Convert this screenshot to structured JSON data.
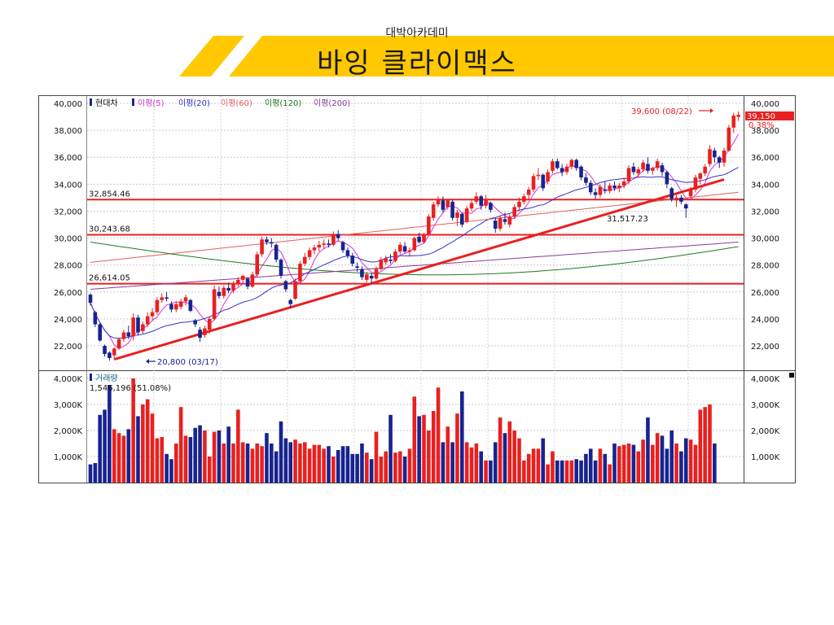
{
  "slide": {
    "subtitle": "대박아카데미",
    "title": "바잉 클라이맥스"
  },
  "colors": {
    "banner": "#ffc800",
    "up": "#e8201f",
    "down": "#17238f",
    "trendline": "#e8201f",
    "ma5": "#d633d6",
    "ma20": "#3333cc",
    "ma60": "#e26060",
    "ma120": "#1f7a1f",
    "ma200": "#8a3a9a"
  },
  "legend": {
    "stock": "현대차",
    "ma5": "이평(5)",
    "ma20": "이평(20)",
    "ma60": "이평(60)",
    "ma120": "이평(120)",
    "ma200": "이평(200)"
  },
  "volume_panel": {
    "label": "거래량",
    "current": "1,546,196 (51.08%)"
  },
  "price_tag": {
    "value": "39,150",
    "change": "0.38%"
  },
  "chart_data": {
    "type": "candlestick",
    "stock": "현대차",
    "price_ylim": [
      21000,
      40300
    ],
    "price_ticks": [
      "40,000",
      "38,000",
      "36,000",
      "34,000",
      "32,000",
      "30,000",
      "28,000",
      "26,000",
      "24,000",
      "22,000"
    ],
    "volume_ylim": [
      0,
      4100000
    ],
    "volume_ticks": [
      "4,000K",
      "3,000K",
      "2,000K",
      "1,000K"
    ],
    "horizontal_levels": [
      {
        "label": "32,854.46",
        "value": 32854.46
      },
      {
        "label": "30,243.68",
        "value": 30243.68
      },
      {
        "label": "26,614.05",
        "value": 26614.05
      }
    ],
    "annotations": {
      "high": {
        "text": "39,600 (08/22)",
        "value": 39600
      },
      "low": {
        "text": "20,800 (03/17)",
        "value": 20800
      },
      "support": {
        "text": "31,517.23",
        "value": 31517.23
      }
    },
    "trendline": {
      "from_bar": 5,
      "from_value": 21000,
      "to_bar": 133,
      "to_value": 34350
    },
    "ohlc": [
      [
        25800,
        25900,
        25000,
        25200
      ],
      [
        24500,
        24600,
        23400,
        23600
      ],
      [
        23600,
        23700,
        22300,
        22400
      ],
      [
        22000,
        22100,
        21200,
        21400
      ],
      [
        21500,
        21600,
        20900,
        21100
      ],
      [
        21300,
        21900,
        21000,
        21800
      ],
      [
        21800,
        22600,
        21700,
        22500
      ],
      [
        22500,
        23200,
        22300,
        23000
      ],
      [
        23000,
        23500,
        22500,
        22700
      ],
      [
        22700,
        24400,
        22400,
        24100
      ],
      [
        24100,
        24300,
        22800,
        23000
      ],
      [
        23100,
        23800,
        22900,
        23600
      ],
      [
        23600,
        24500,
        23400,
        24200
      ],
      [
        24200,
        24800,
        23900,
        24500
      ],
      [
        24500,
        25600,
        24300,
        25400
      ],
      [
        25400,
        25900,
        25200,
        25600
      ],
      [
        25600,
        26000,
        25300,
        25500
      ],
      [
        25100,
        25300,
        24500,
        24700
      ],
      [
        24700,
        25300,
        24500,
        25100
      ],
      [
        24900,
        25500,
        24700,
        25300
      ],
      [
        25300,
        25800,
        25000,
        25600
      ],
      [
        25400,
        25500,
        24500,
        24600
      ],
      [
        23900,
        24000,
        23400,
        23600
      ],
      [
        23200,
        23400,
        22300,
        22600
      ],
      [
        22800,
        23500,
        22600,
        23300
      ],
      [
        23200,
        24200,
        22900,
        24000
      ],
      [
        24000,
        26500,
        23900,
        26200
      ],
      [
        26000,
        26400,
        25500,
        25700
      ],
      [
        25700,
        26500,
        25500,
        26300
      ],
      [
        26300,
        26700,
        25900,
        26100
      ],
      [
        26100,
        26800,
        25900,
        26600
      ],
      [
        26600,
        27100,
        26400,
        26900
      ],
      [
        26900,
        27300,
        26600,
        27200
      ],
      [
        27000,
        27100,
        26200,
        26400
      ],
      [
        26400,
        27500,
        26300,
        27300
      ],
      [
        27300,
        29000,
        27100,
        28800
      ],
      [
        28800,
        30100,
        28600,
        29900
      ],
      [
        29900,
        30100,
        29500,
        29700
      ],
      [
        29700,
        30000,
        29300,
        29600
      ],
      [
        29500,
        29600,
        28200,
        28400
      ],
      [
        28400,
        28500,
        27000,
        27200
      ],
      [
        26800,
        26900,
        26000,
        26200
      ],
      [
        25400,
        25500,
        24800,
        25100
      ],
      [
        25500,
        27000,
        25400,
        26800
      ],
      [
        26800,
        28300,
        26600,
        28100
      ],
      [
        28100,
        28900,
        27900,
        28600
      ],
      [
        28600,
        29300,
        28400,
        29100
      ],
      [
        29100,
        29500,
        28800,
        29300
      ],
      [
        29300,
        29800,
        29000,
        29500
      ],
      [
        29500,
        29900,
        29200,
        29600
      ],
      [
        29600,
        29900,
        29300,
        29500
      ],
      [
        29500,
        30500,
        29400,
        30300
      ],
      [
        30300,
        30600,
        29800,
        30000
      ],
      [
        29700,
        29800,
        28900,
        29100
      ],
      [
        29100,
        29300,
        28500,
        28700
      ],
      [
        28700,
        28900,
        27900,
        28100
      ],
      [
        27900,
        28200,
        27500,
        27800
      ],
      [
        27700,
        27900,
        26900,
        27100
      ],
      [
        26900,
        27500,
        26700,
        27300
      ],
      [
        27200,
        27400,
        26600,
        27000
      ],
      [
        27000,
        27900,
        26900,
        27700
      ],
      [
        27700,
        28600,
        27600,
        28400
      ],
      [
        28200,
        28700,
        28000,
        28500
      ],
      [
        28400,
        28800,
        28100,
        28300
      ],
      [
        28300,
        29200,
        28200,
        29000
      ],
      [
        29000,
        29700,
        28800,
        29500
      ],
      [
        29400,
        29700,
        28900,
        29000
      ],
      [
        29000,
        29300,
        28700,
        29100
      ],
      [
        29100,
        30100,
        29000,
        30000
      ],
      [
        30100,
        30400,
        29600,
        29700
      ],
      [
        29700,
        30400,
        29600,
        30300
      ],
      [
        30300,
        31800,
        30200,
        31600
      ],
      [
        31500,
        32700,
        31300,
        32500
      ],
      [
        32500,
        33100,
        32300,
        32900
      ],
      [
        32800,
        33100,
        31900,
        32100
      ],
      [
        32300,
        32900,
        32100,
        32800
      ],
      [
        32700,
        32900,
        31300,
        31500
      ],
      [
        31500,
        32100,
        30900,
        31900
      ],
      [
        31800,
        31900,
        30800,
        31000
      ],
      [
        31200,
        32400,
        31100,
        32200
      ],
      [
        32200,
        32800,
        32000,
        32600
      ],
      [
        32700,
        33400,
        32500,
        33100
      ],
      [
        33100,
        33200,
        32100,
        32400
      ],
      [
        32400,
        33200,
        32200,
        32900
      ],
      [
        32600,
        32700,
        31900,
        32100
      ],
      [
        31300,
        31500,
        30400,
        30700
      ],
      [
        30700,
        31700,
        30500,
        31500
      ],
      [
        31400,
        31900,
        31000,
        31200
      ],
      [
        31000,
        31800,
        30800,
        31600
      ],
      [
        31600,
        32500,
        31400,
        32300
      ],
      [
        32300,
        33000,
        32000,
        32700
      ],
      [
        32700,
        33300,
        32500,
        33100
      ],
      [
        33200,
        33800,
        32900,
        33600
      ],
      [
        33600,
        34800,
        33400,
        34600
      ],
      [
        34600,
        35200,
        34300,
        34700
      ],
      [
        34700,
        34800,
        33500,
        33700
      ],
      [
        34200,
        35100,
        34000,
        34900
      ],
      [
        35000,
        35900,
        34800,
        35700
      ],
      [
        35700,
        35900,
        35100,
        35200
      ],
      [
        35200,
        35500,
        34600,
        34900
      ],
      [
        34900,
        35500,
        34700,
        35300
      ],
      [
        35300,
        35900,
        35100,
        35800
      ],
      [
        35800,
        35900,
        35000,
        35200
      ],
      [
        35300,
        35400,
        34300,
        34500
      ],
      [
        34500,
        34800,
        33900,
        34100
      ],
      [
        34100,
        34300,
        33200,
        33400
      ],
      [
        33400,
        33700,
        32900,
        33200
      ],
      [
        33200,
        34000,
        33000,
        33800
      ],
      [
        33600,
        34200,
        33300,
        33500
      ],
      [
        33500,
        34100,
        33300,
        33900
      ],
      [
        33900,
        34200,
        33500,
        33700
      ],
      [
        33700,
        34100,
        33400,
        33900
      ],
      [
        33900,
        34500,
        33700,
        34200
      ],
      [
        34200,
        35400,
        34000,
        35200
      ],
      [
        35300,
        35600,
        34700,
        34900
      ],
      [
        34800,
        35300,
        34500,
        35100
      ],
      [
        35100,
        35800,
        34900,
        35600
      ],
      [
        35500,
        36000,
        34800,
        35000
      ],
      [
        35000,
        35300,
        34700,
        35200
      ],
      [
        35200,
        35900,
        35000,
        35700
      ],
      [
        35400,
        35600,
        34600,
        34900
      ],
      [
        34900,
        35000,
        33700,
        34000
      ],
      [
        33700,
        33800,
        32700,
        32900
      ],
      [
        32800,
        33200,
        32300,
        33000
      ],
      [
        33000,
        33200,
        32500,
        32700
      ],
      [
        32500,
        32600,
        31500,
        32200
      ],
      [
        33100,
        33800,
        32900,
        33600
      ],
      [
        33600,
        34700,
        33400,
        34500
      ],
      [
        34400,
        34900,
        34000,
        34800
      ],
      [
        34800,
        35500,
        34600,
        35300
      ],
      [
        35500,
        36900,
        35300,
        36600
      ],
      [
        36500,
        36700,
        35600,
        36000
      ],
      [
        36000,
        36100,
        35200,
        35600
      ],
      [
        35600,
        36700,
        35300,
        36500
      ],
      [
        36500,
        38400,
        36400,
        38200
      ],
      [
        38200,
        39300,
        37800,
        39100
      ],
      [
        39000,
        39400,
        38700,
        39150
      ]
    ],
    "volume": [
      700000,
      750000,
      2600000,
      2800000,
      3750000,
      2050000,
      1900000,
      1800000,
      2050000,
      4000000,
      2550000,
      3000000,
      3200000,
      2650000,
      1700000,
      1750000,
      1100000,
      900000,
      1500000,
      2900000,
      1800000,
      1750000,
      2100000,
      2200000,
      2000000,
      1000000,
      1950000,
      2000000,
      1500000,
      2150000,
      1500000,
      2800000,
      1550000,
      1500000,
      1300000,
      1500000,
      1400000,
      1900000,
      1500000,
      1200000,
      2350000,
      1700000,
      1550000,
      1650000,
      1500000,
      1550000,
      1300000,
      1450000,
      1450000,
      1300000,
      1400000,
      1000000,
      1250000,
      1400000,
      1400000,
      1100000,
      1100000,
      1500000,
      1150000,
      900000,
      1950000,
      1000000,
      1200000,
      2600000,
      1150000,
      1200000,
      1000000,
      1300000,
      3300000,
      2550000,
      2600000,
      2000000,
      2750000,
      3650000,
      1550000,
      2150000,
      1550000,
      2650000,
      3500000,
      1550000,
      1350000,
      1500000,
      1200000,
      850000,
      850000,
      1550000,
      2500000,
      1900000,
      2350000,
      2000000,
      1700000,
      850000,
      1100000,
      1300000,
      1300000,
      1700000,
      700000,
      1200000,
      850000,
      850000,
      850000,
      850000,
      900000,
      850000,
      1100000,
      1300000,
      850000,
      1300000,
      1100000,
      700000,
      1500000,
      1400000,
      1450000,
      1500000,
      1450000,
      1200000,
      1650000,
      2500000,
      1450000,
      1900000,
      1800000,
      1300000,
      2000000,
      1500000,
      1200000,
      1700000,
      1650000,
      1450000,
      2800000,
      2900000,
      3000000,
      1500000
    ]
  }
}
